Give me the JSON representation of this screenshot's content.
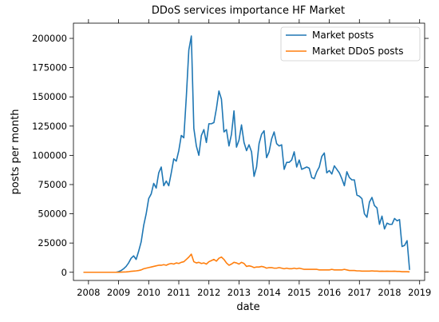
{
  "chart_data": {
    "type": "line",
    "title": "DDoS services importance HF Market",
    "xlabel": "date",
    "ylabel": "posts per month",
    "x_start": "2007-11",
    "x_step": "month",
    "xlim": [
      "2007-07",
      "2019-03"
    ],
    "ylim": [
      -7000,
      213000
    ],
    "x_ticks": [
      "2008",
      "2009",
      "2010",
      "2011",
      "2012",
      "2013",
      "2014",
      "2015",
      "2016",
      "2017",
      "2018",
      "2019"
    ],
    "y_ticks": [
      0,
      25000,
      50000,
      75000,
      100000,
      125000,
      150000,
      175000,
      200000
    ],
    "y_tick_labels": [
      "0",
      "25000",
      "50000",
      "75000",
      "100000",
      "125000",
      "150000",
      "175000",
      "200000"
    ],
    "legend_position": "top-right",
    "grid": false,
    "series": [
      {
        "name": "Market posts",
        "color": "#1f77b4",
        "values": [
          0,
          0,
          0,
          0,
          0,
          0,
          0,
          0,
          0,
          0,
          0,
          0,
          0,
          0,
          500,
          1500,
          3000,
          5000,
          8000,
          12000,
          14000,
          11000,
          18000,
          26000,
          40000,
          50000,
          63000,
          67000,
          76000,
          72000,
          85000,
          90000,
          74000,
          78000,
          74000,
          85000,
          97000,
          95000,
          104000,
          117000,
          115000,
          150000,
          190000,
          202000,
          123000,
          108000,
          100000,
          117000,
          122000,
          111000,
          127000,
          127000,
          128000,
          140000,
          155000,
          148000,
          120000,
          122000,
          108000,
          118000,
          138000,
          107000,
          113000,
          126000,
          111000,
          104000,
          109000,
          103000,
          82000,
          90000,
          110000,
          118000,
          121000,
          98000,
          103000,
          114000,
          120000,
          110000,
          108000,
          109000,
          88000,
          94000,
          94000,
          96000,
          103000,
          90000,
          96000,
          88000,
          89000,
          90000,
          89000,
          81000,
          80000,
          86000,
          90000,
          99000,
          102000,
          85000,
          87000,
          84000,
          91000,
          88000,
          85000,
          80000,
          74000,
          86000,
          81000,
          79000,
          79000,
          66000,
          65000,
          63000,
          50000,
          47000,
          60000,
          64000,
          57000,
          55000,
          41000,
          48000,
          37000,
          42000,
          41000,
          41000,
          46000,
          44000,
          45000,
          22000,
          23000,
          27000,
          2000
        ]
      },
      {
        "name": "Market DDoS posts",
        "color": "#ff7f0e",
        "values": [
          0,
          0,
          0,
          0,
          0,
          0,
          0,
          0,
          0,
          0,
          0,
          0,
          0,
          0,
          0,
          100,
          200,
          300,
          500,
          800,
          1000,
          1200,
          1500,
          2000,
          3000,
          3500,
          4000,
          4500,
          5000,
          5500,
          6000,
          6000,
          6500,
          6000,
          7000,
          7500,
          7000,
          8000,
          7500,
          8500,
          9000,
          11000,
          13000,
          15500,
          9000,
          8000,
          8500,
          7500,
          8000,
          7000,
          9000,
          10000,
          11000,
          9500,
          12000,
          13000,
          11000,
          8000,
          6000,
          7000,
          8500,
          8000,
          7000,
          8500,
          7500,
          5000,
          5500,
          5000,
          4000,
          4500,
          4500,
          5000,
          4500,
          3500,
          4000,
          4000,
          3500,
          3500,
          4000,
          3500,
          3000,
          3500,
          3000,
          3000,
          3500,
          3000,
          3500,
          3000,
          2500,
          2500,
          2500,
          2500,
          2500,
          2500,
          2000,
          2000,
          2000,
          2000,
          2000,
          2500,
          2000,
          2000,
          2000,
          2000,
          2500,
          2000,
          1500,
          1500,
          1500,
          1200,
          1200,
          1000,
          1000,
          1000,
          1000,
          1200,
          1000,
          1000,
          800,
          900,
          800,
          900,
          800,
          800,
          900,
          700,
          700,
          500,
          500,
          500,
          300
        ]
      }
    ]
  }
}
